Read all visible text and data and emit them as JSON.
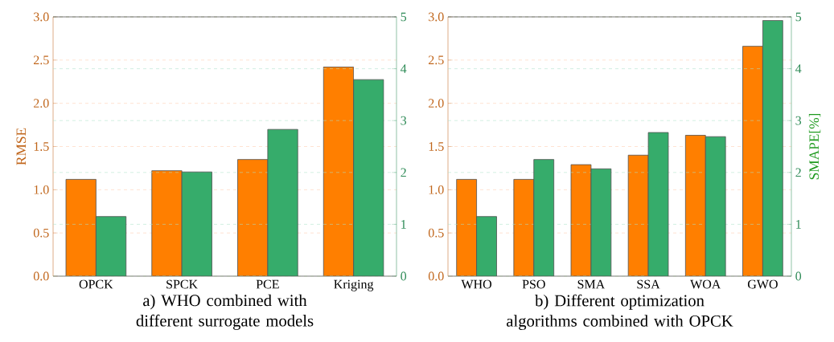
{
  "chart_data": [
    {
      "type": "bar",
      "title": "a) WHO combined with different surrogate models",
      "ylabel": "RMSE",
      "categories": [
        "OPCK",
        "SPCK",
        "PCE",
        "Kriging"
      ],
      "series": [
        {
          "color": "#ff7f00",
          "values": [
            1.12,
            1.22,
            1.35,
            2.42
          ]
        },
        {
          "color": "#36ac6b",
          "axis": "y2",
          "values": [
            1.15,
            2.01,
            2.83,
            3.79
          ]
        }
      ],
      "ylim": [
        0,
        3
      ],
      "yticks": [
        {
          "value": 0,
          "label": "0.0"
        },
        0.5,
        {
          "value": 1,
          "label": "1.0"
        },
        1.5,
        {
          "value": 2,
          "label": "2.0"
        },
        2.5,
        {
          "value": 3,
          "label": "3.0"
        }
      ],
      "y2lim": [
        0,
        5
      ],
      "y2ticks": [
        0,
        1,
        2,
        3,
        4,
        5
      ],
      "grid": true
    },
    {
      "type": "bar",
      "title": "b) Different optimization algorithms combined with OPCK",
      "y2label": "SMAPE[%]",
      "categories": [
        "WHO",
        "PSO",
        "SMA",
        "SSA",
        "WOA",
        "GWO"
      ],
      "series": [
        {
          "color": "#ff7f00",
          "values": [
            1.12,
            1.12,
            1.29,
            1.4,
            1.63,
            2.66
          ]
        },
        {
          "color": "#36ac6b",
          "axis": "y2",
          "values": [
            1.15,
            2.25,
            2.07,
            2.77,
            2.69,
            4.93
          ]
        }
      ],
      "ylim": [
        0,
        3
      ],
      "yticks": [
        {
          "value": 0,
          "label": "0.0"
        },
        0.5,
        {
          "value": 1,
          "label": "1.0"
        },
        1.5,
        {
          "value": 2,
          "label": "2.0"
        },
        2.5,
        {
          "value": 3,
          "label": "3.0"
        }
      ],
      "y2lim": [
        0,
        5
      ],
      "y2ticks": [
        0,
        1,
        2,
        3,
        4,
        5
      ],
      "grid": true
    }
  ]
}
